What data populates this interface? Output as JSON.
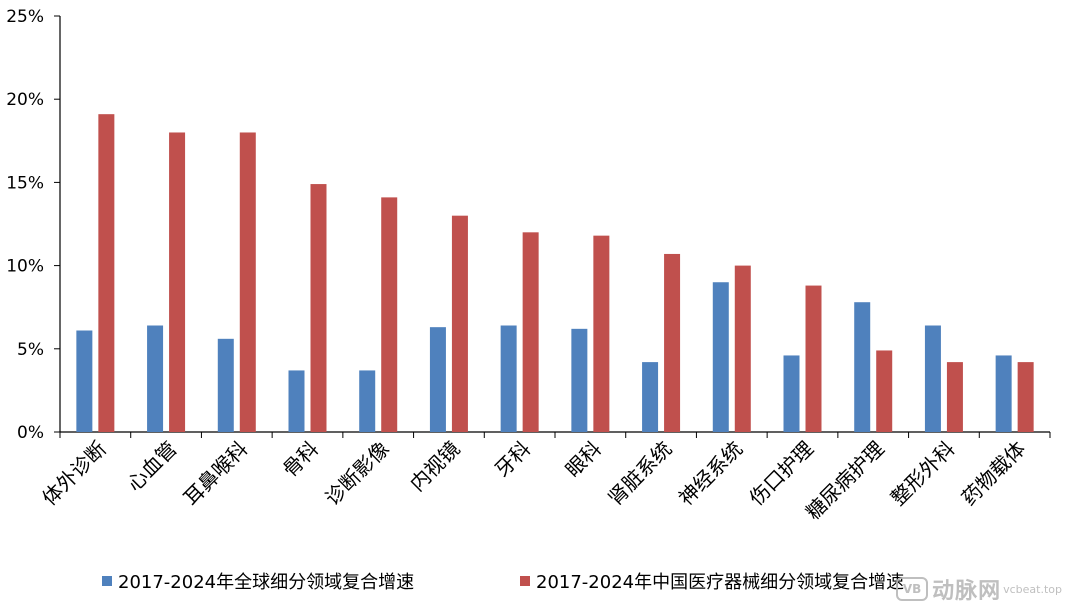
{
  "chart_data": {
    "type": "bar",
    "categories": [
      "体外诊断",
      "心血管",
      "耳鼻喉科",
      "骨科",
      "诊断影像",
      "内视镜",
      "牙科",
      "眼科",
      "肾脏系统",
      "神经系统",
      "伤口护理",
      "糖尿病护理",
      "整形外科",
      "药物载体"
    ],
    "series": [
      {
        "name": "2017-2024年全球细分领域复合增速",
        "color": "#4f81bd",
        "values": [
          6.1,
          6.4,
          5.6,
          3.7,
          3.7,
          6.3,
          6.4,
          6.2,
          4.2,
          9.0,
          4.6,
          7.8,
          6.4,
          4.6
        ]
      },
      {
        "name": "2017-2024年中国医疗器械细分领域复合增速",
        "color": "#c0504d",
        "values": [
          19.1,
          18.0,
          18.0,
          14.9,
          14.1,
          13.0,
          12.0,
          11.8,
          10.7,
          10.0,
          8.8,
          4.9,
          4.2,
          4.2
        ]
      }
    ],
    "y_ticks": [
      "0%",
      "5%",
      "10%",
      "15%",
      "20%",
      "25%"
    ],
    "ylim": [
      0,
      25
    ],
    "y_unit": "%",
    "grid": false,
    "legend_position": "bottom"
  },
  "watermark": {
    "logo": "VB",
    "text": "动脉网",
    "sub": "vcbeat.top"
  }
}
